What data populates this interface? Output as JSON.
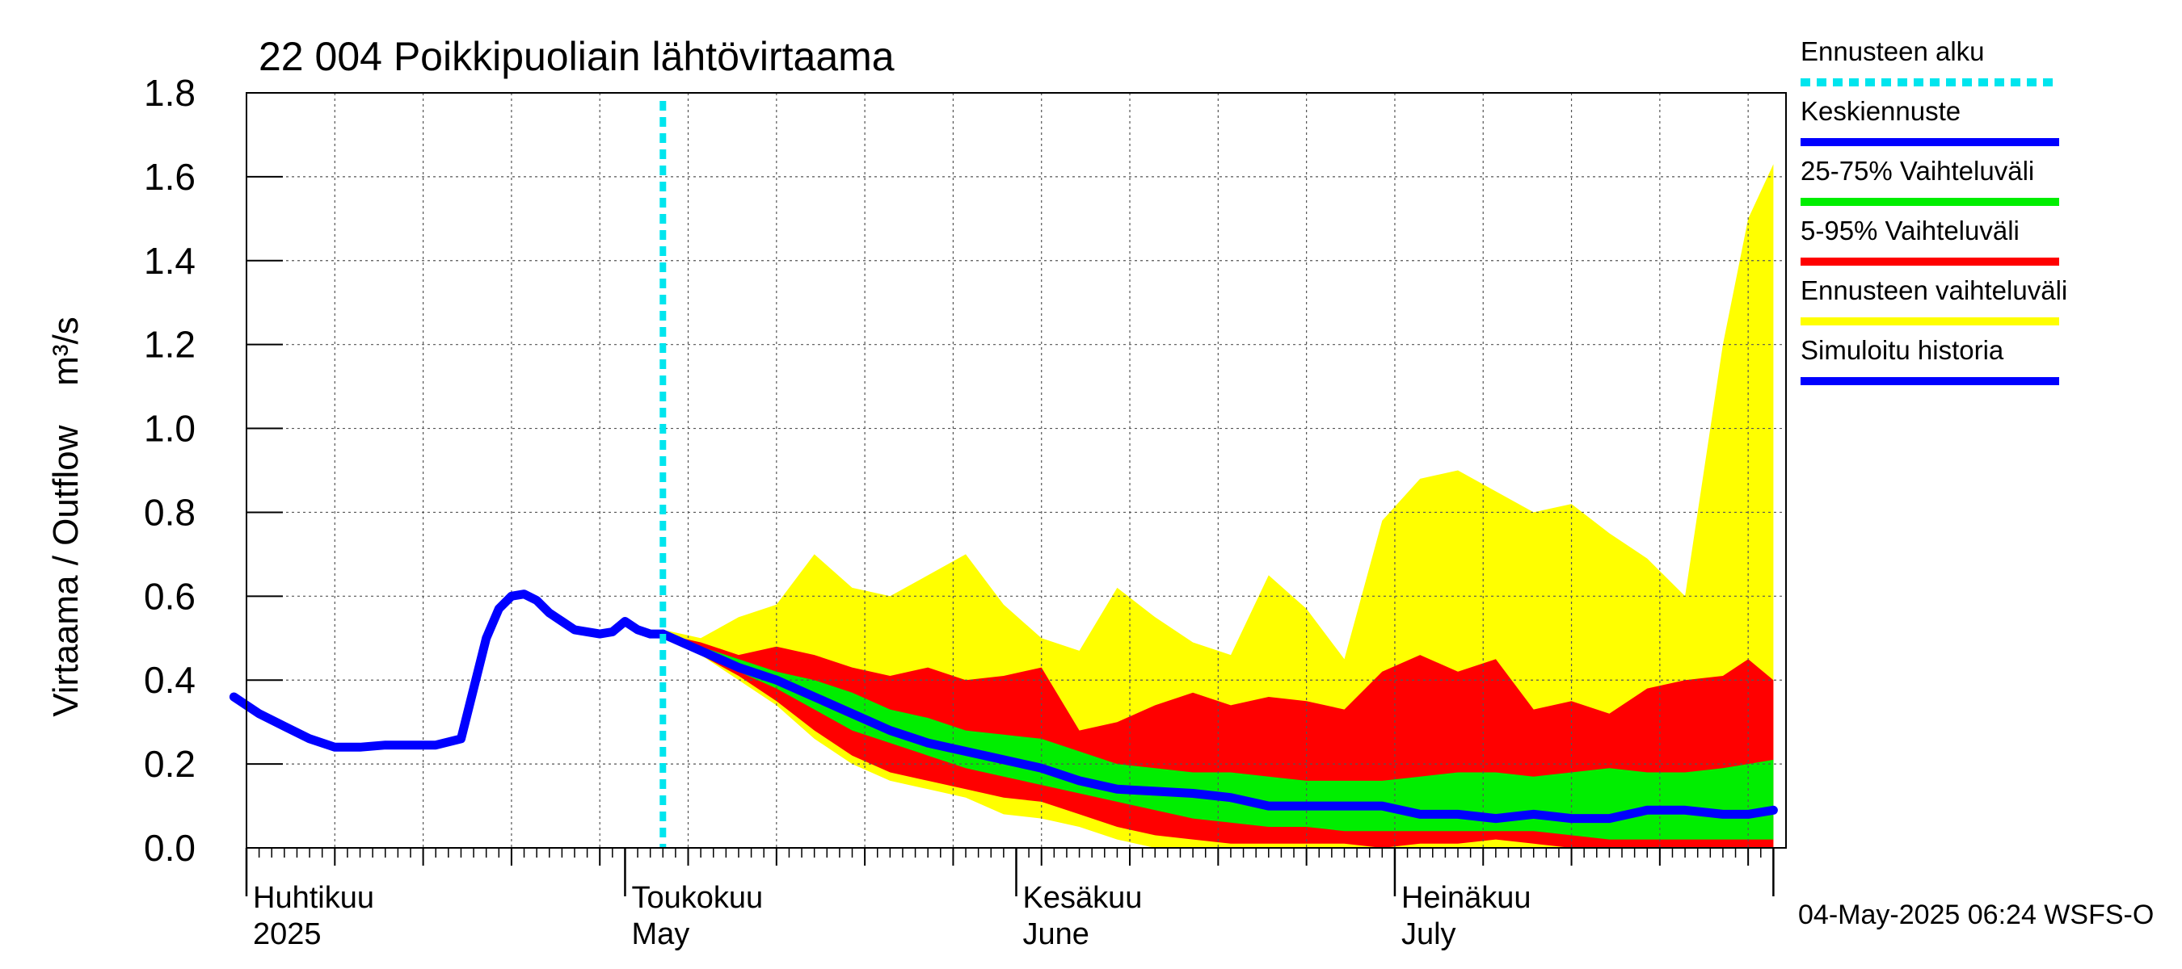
{
  "chart_data": {
    "type": "area",
    "title": "22 004 Poikkipuoliain lähtövirtaama",
    "ylabel": "Virtaama / Outflow    m³/s",
    "ylim": [
      0,
      1.8
    ],
    "y_ticks": [
      "0.0",
      "0.2",
      "0.4",
      "0.6",
      "0.8",
      "1.0",
      "1.2",
      "1.4",
      "1.6",
      "1.8"
    ],
    "x_range": [
      "2025-04-01",
      "2025-07-31"
    ],
    "month_labels": [
      {
        "date": "2025-04-01",
        "line1": "Huhtikuu",
        "line2": "2025"
      },
      {
        "date": "2025-05-01",
        "line1": "Toukokuu",
        "line2": "May"
      },
      {
        "date": "2025-06-01",
        "line1": "Kesäkuu",
        "line2": "June"
      },
      {
        "date": "2025-07-01",
        "line1": "Heinäkuu",
        "line2": "July"
      }
    ],
    "forecast_start": "2025-05-04",
    "grid": true,
    "legend_position": "right",
    "footer": "04-May-2025 06:24 WSFS-O",
    "legend": [
      {
        "label": "Ennusteen alku",
        "color": "#00e5ee",
        "style": "dotted"
      },
      {
        "label": "Keskiennuste",
        "color": "#0000ff",
        "style": "solid"
      },
      {
        "label": "25-75% Vaihteluväli",
        "color": "#00ee00",
        "style": "solid"
      },
      {
        "label": "5-95% Vaihteluväli",
        "color": "#ff0000",
        "style": "solid"
      },
      {
        "label": "Ennusteen vaihteluväli",
        "color": "#ffff00",
        "style": "solid"
      },
      {
        "label": "Simuloitu historia",
        "color": "#0000ff",
        "style": "solid"
      }
    ],
    "history": {
      "x": [
        "2025-03-31",
        "2025-04-02",
        "2025-04-04",
        "2025-04-06",
        "2025-04-08",
        "2025-04-10",
        "2025-04-12",
        "2025-04-14",
        "2025-04-16",
        "2025-04-18",
        "2025-04-20",
        "2025-04-21",
        "2025-04-22",
        "2025-04-23",
        "2025-04-24",
        "2025-04-25",
        "2025-04-26",
        "2025-04-27",
        "2025-04-29",
        "2025-04-30",
        "2025-05-01",
        "2025-05-02",
        "2025-05-03",
        "2025-05-04"
      ],
      "y": [
        0.36,
        0.32,
        0.29,
        0.26,
        0.24,
        0.24,
        0.245,
        0.245,
        0.245,
        0.26,
        0.5,
        0.57,
        0.6,
        0.605,
        0.59,
        0.56,
        0.54,
        0.52,
        0.51,
        0.515,
        0.54,
        0.52,
        0.51,
        0.51
      ]
    },
    "forecast": {
      "x": [
        "2025-05-04",
        "2025-05-07",
        "2025-05-10",
        "2025-05-13",
        "2025-05-16",
        "2025-05-19",
        "2025-05-22",
        "2025-05-25",
        "2025-05-28",
        "2025-05-31",
        "2025-06-03",
        "2025-06-06",
        "2025-06-09",
        "2025-06-12",
        "2025-06-15",
        "2025-06-18",
        "2025-06-21",
        "2025-06-24",
        "2025-06-27",
        "2025-06-30",
        "2025-07-03",
        "2025-07-06",
        "2025-07-09",
        "2025-07-12",
        "2025-07-15",
        "2025-07-18",
        "2025-07-21",
        "2025-07-24",
        "2025-07-27",
        "2025-07-29",
        "2025-07-31"
      ],
      "min": [
        0.51,
        0.46,
        0.4,
        0.34,
        0.26,
        0.2,
        0.16,
        0.14,
        0.12,
        0.08,
        0.07,
        0.05,
        0.02,
        0.0,
        0.0,
        0.0,
        0.0,
        0.0,
        0.0,
        0.0,
        0.0,
        0.0,
        0.0,
        0.0,
        0.0,
        0.0,
        0.0,
        0.0,
        0.0,
        0.0,
        0.0
      ],
      "p5": [
        0.51,
        0.46,
        0.41,
        0.35,
        0.28,
        0.22,
        0.18,
        0.16,
        0.14,
        0.12,
        0.11,
        0.08,
        0.05,
        0.03,
        0.02,
        0.01,
        0.01,
        0.01,
        0.01,
        0.0,
        0.01,
        0.01,
        0.02,
        0.01,
        0.0,
        0.0,
        0.0,
        0.0,
        0.0,
        0.0,
        0.0
      ],
      "p25": [
        0.51,
        0.47,
        0.42,
        0.38,
        0.33,
        0.28,
        0.25,
        0.22,
        0.19,
        0.17,
        0.15,
        0.13,
        0.11,
        0.09,
        0.07,
        0.06,
        0.05,
        0.05,
        0.04,
        0.04,
        0.04,
        0.04,
        0.04,
        0.04,
        0.03,
        0.02,
        0.02,
        0.02,
        0.02,
        0.02,
        0.02
      ],
      "median": [
        0.51,
        0.47,
        0.43,
        0.4,
        0.36,
        0.32,
        0.28,
        0.25,
        0.23,
        0.21,
        0.19,
        0.16,
        0.14,
        0.135,
        0.13,
        0.12,
        0.1,
        0.1,
        0.1,
        0.1,
        0.08,
        0.08,
        0.07,
        0.08,
        0.07,
        0.07,
        0.09,
        0.09,
        0.08,
        0.08,
        0.09
      ],
      "p75": [
        0.51,
        0.48,
        0.45,
        0.42,
        0.4,
        0.37,
        0.33,
        0.31,
        0.28,
        0.27,
        0.26,
        0.23,
        0.2,
        0.19,
        0.18,
        0.18,
        0.17,
        0.16,
        0.16,
        0.16,
        0.17,
        0.18,
        0.18,
        0.17,
        0.18,
        0.19,
        0.18,
        0.18,
        0.19,
        0.2,
        0.21
      ],
      "p95": [
        0.51,
        0.49,
        0.46,
        0.48,
        0.46,
        0.43,
        0.41,
        0.43,
        0.4,
        0.41,
        0.43,
        0.28,
        0.3,
        0.34,
        0.37,
        0.34,
        0.36,
        0.35,
        0.33,
        0.42,
        0.46,
        0.42,
        0.45,
        0.33,
        0.35,
        0.32,
        0.38,
        0.4,
        0.41,
        0.45,
        0.4
      ],
      "max": [
        0.52,
        0.5,
        0.55,
        0.58,
        0.7,
        0.62,
        0.6,
        0.65,
        0.7,
        0.58,
        0.5,
        0.47,
        0.62,
        0.55,
        0.49,
        0.46,
        0.65,
        0.57,
        0.45,
        0.78,
        0.88,
        0.9,
        0.85,
        0.8,
        0.82,
        0.75,
        0.69,
        0.6,
        1.2,
        1.5,
        1.63
      ]
    }
  }
}
